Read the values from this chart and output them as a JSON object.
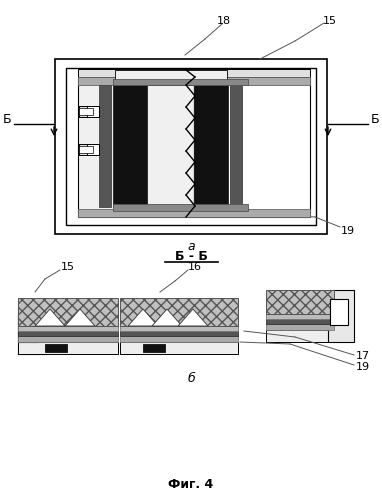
{
  "bg_color": "#ffffff",
  "lc": "#000000",
  "label_a": "а",
  "label_b": "б",
  "section_label": "Б - Б",
  "left_marker": "Б",
  "right_marker": "Б",
  "num_15_top": "15",
  "num_18_top": "18",
  "num_19_top": "19",
  "num_15_bot": "15",
  "num_16_bot": "16",
  "num_17_bot": "17",
  "num_19_bot": "19",
  "fig_caption": "Фиг. 4"
}
